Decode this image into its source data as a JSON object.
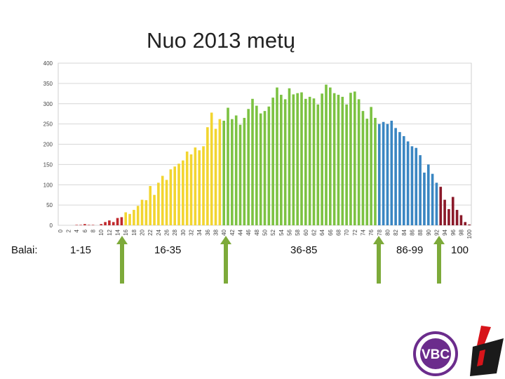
{
  "title": "Nuo 2013 metų",
  "bands": {
    "prefix": "Balai:",
    "labels": [
      "1-15",
      "16-35",
      "36-85",
      "86-99",
      "100"
    ]
  },
  "logo": {
    "text": "VBC",
    "colors": [
      "#6b2c8c",
      "#d7141a",
      "#1a1a1a"
    ]
  },
  "colors": {
    "red": "#c0282c",
    "yellow": "#f2d530",
    "green": "#7cc242",
    "blue": "#3a86c2",
    "darkred": "#8b1a2a",
    "arrow": "#7daa3a"
  },
  "chart_data": {
    "type": "bar",
    "title": "",
    "xlabel": "",
    "ylabel": "",
    "ylim": [
      0,
      400
    ],
    "yticks": [
      0,
      50,
      100,
      150,
      200,
      250,
      300,
      350,
      400
    ],
    "xtick_step": 2,
    "grid": true,
    "x": [
      0,
      1,
      2,
      3,
      4,
      5,
      6,
      7,
      8,
      9,
      10,
      11,
      12,
      13,
      14,
      15,
      16,
      17,
      18,
      19,
      20,
      21,
      22,
      23,
      24,
      25,
      26,
      27,
      28,
      29,
      30,
      31,
      32,
      33,
      34,
      35,
      36,
      37,
      38,
      39,
      40,
      41,
      42,
      43,
      44,
      45,
      46,
      47,
      48,
      49,
      50,
      51,
      52,
      53,
      54,
      55,
      56,
      57,
      58,
      59,
      60,
      61,
      62,
      63,
      64,
      65,
      66,
      67,
      68,
      69,
      70,
      71,
      72,
      73,
      74,
      75,
      76,
      77,
      78,
      79,
      80,
      81,
      82,
      83,
      84,
      85,
      86,
      87,
      88,
      89,
      90,
      91,
      92,
      93,
      94,
      95,
      96,
      97,
      98,
      99,
      100
    ],
    "values": [
      0,
      0,
      0,
      0,
      1,
      1,
      3,
      1,
      1,
      0,
      3,
      8,
      12,
      8,
      18,
      20,
      32,
      28,
      38,
      48,
      63,
      62,
      97,
      75,
      105,
      122,
      112,
      138,
      145,
      152,
      160,
      182,
      175,
      192,
      185,
      195,
      242,
      278,
      238,
      262,
      258,
      290,
      262,
      271,
      248,
      265,
      287,
      312,
      295,
      276,
      282,
      293,
      315,
      340,
      322,
      311,
      338,
      323,
      326,
      328,
      312,
      317,
      313,
      298,
      325,
      347,
      340,
      326,
      322,
      317,
      298,
      327,
      330,
      311,
      282,
      263,
      292,
      265,
      250,
      255,
      250,
      258,
      240,
      230,
      220,
      207,
      195,
      191,
      173,
      130,
      150,
      127,
      105,
      95,
      63,
      40,
      70,
      38,
      25,
      8,
      2
    ]
  }
}
